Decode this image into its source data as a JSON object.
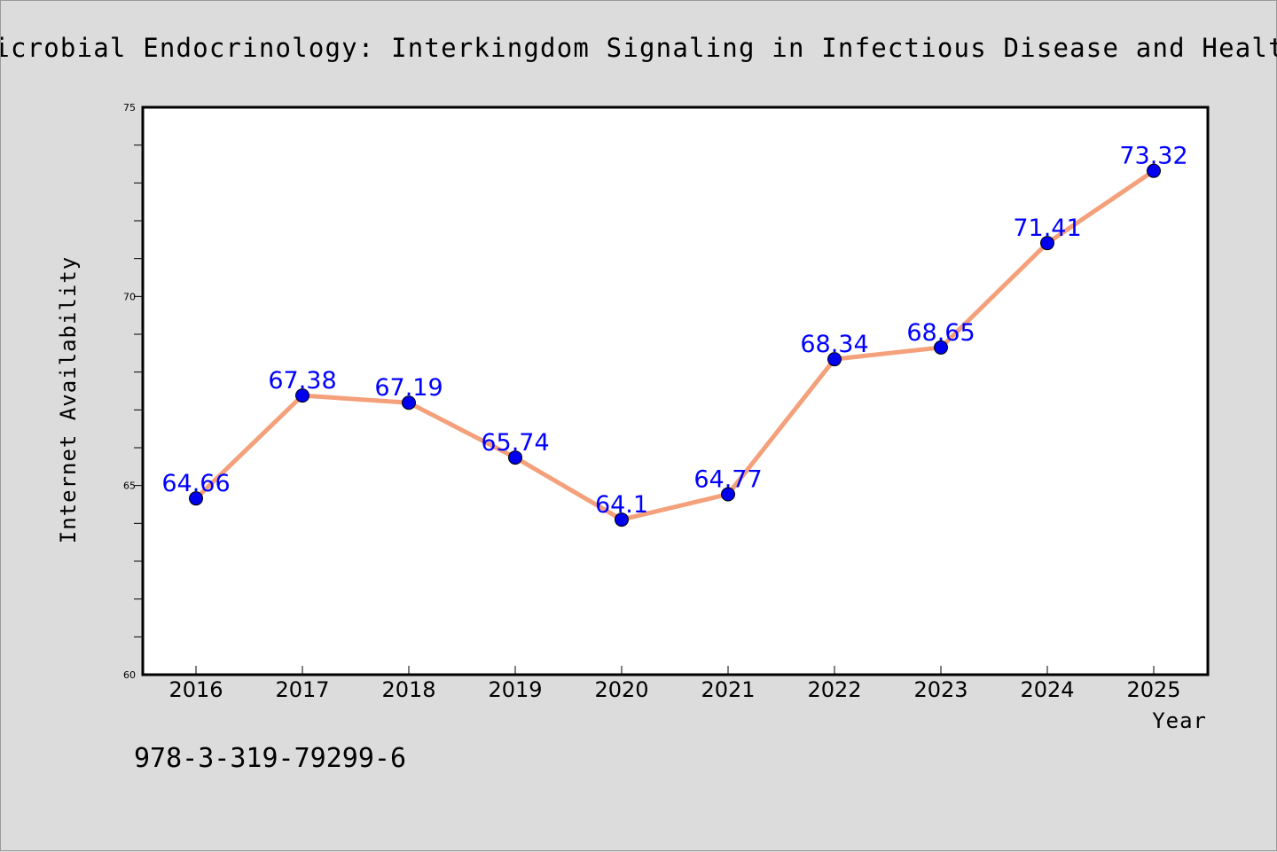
{
  "chart_data": {
    "type": "line",
    "title": "Microbial Endocrinology: Interkingdom Signaling in Infectious Disease and Health",
    "xlabel": "Year",
    "ylabel": "Internet Availability",
    "categories": [
      "2016",
      "2017",
      "2018",
      "2019",
      "2020",
      "2021",
      "2022",
      "2023",
      "2024",
      "2025"
    ],
    "values": [
      64.66,
      67.38,
      67.19,
      65.74,
      64.1,
      64.77,
      68.34,
      68.65,
      71.41,
      73.32
    ],
    "data_labels": [
      "64.66",
      "67.38",
      "67.19",
      "65.74",
      "64.1",
      "64.77",
      "68.34",
      "68.65",
      "71.41",
      "73.32"
    ],
    "ylim": [
      60,
      75
    ],
    "y_ticks": [
      "60",
      "65",
      "70",
      "75"
    ],
    "grid": false,
    "line_color": "#f4a07a",
    "marker_color": "#0000ee",
    "label_color": "#0000ff"
  },
  "annotation": "978-3-319-79299-6"
}
